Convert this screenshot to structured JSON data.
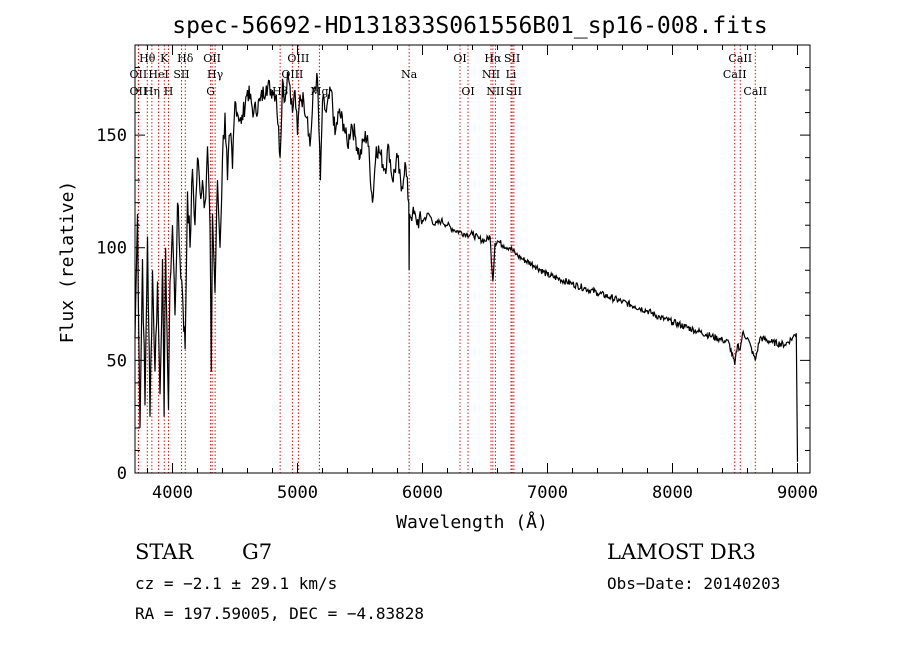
{
  "chart_data": {
    "type": "line",
    "title": "spec-56692-HD131833S061556B01_sp16-008.fits",
    "xlabel": "Wavelength (Å)",
    "ylabel": "Flux (relative)",
    "xlim": [
      3700,
      9100
    ],
    "ylim": [
      0,
      190
    ],
    "x_ticks": [
      4000,
      5000,
      6000,
      7000,
      8000,
      9000
    ],
    "y_ticks": [
      0,
      50,
      100,
      150
    ],
    "line_color": "#000000",
    "marker_color": "#cc0000",
    "series": [
      {
        "name": "flux",
        "x": [
          3700,
          3720,
          3740,
          3760,
          3780,
          3800,
          3820,
          3840,
          3860,
          3880,
          3900,
          3920,
          3933,
          3945,
          3960,
          3968,
          3980,
          4000,
          4020,
          4040,
          4060,
          4080,
          4101,
          4120,
          4140,
          4160,
          4180,
          4200,
          4220,
          4240,
          4260,
          4280,
          4300,
          4310,
          4320,
          4340,
          4360,
          4380,
          4400,
          4420,
          4440,
          4460,
          4480,
          4500,
          4550,
          4600,
          4650,
          4700,
          4750,
          4800,
          4830,
          4861,
          4880,
          4900,
          4920,
          4940,
          4960,
          4980,
          5000,
          5020,
          5050,
          5080,
          5100,
          5130,
          5160,
          5183,
          5200,
          5230,
          5270,
          5300,
          5330,
          5370,
          5400,
          5430,
          5460,
          5500,
          5530,
          5560,
          5600,
          5630,
          5660,
          5700,
          5730,
          5760,
          5800,
          5830,
          5860,
          5890,
          5893,
          5896,
          5920,
          5950,
          6000,
          6050,
          6100,
          6150,
          6200,
          6250,
          6300,
          6350,
          6400,
          6450,
          6500,
          6540,
          6563,
          6580,
          6600,
          6650,
          6700,
          6750,
          6800,
          6900,
          7000,
          7100,
          7200,
          7300,
          7400,
          7500,
          7600,
          7700,
          7800,
          7900,
          8000,
          8100,
          8200,
          8300,
          8400,
          8450,
          8498,
          8520,
          8542,
          8560,
          8600,
          8662,
          8700,
          8800,
          8900,
          8960,
          8990,
          9000
        ],
        "y": [
          60,
          115,
          20,
          95,
          30,
          105,
          25,
          90,
          45,
          85,
          35,
          95,
          25,
          100,
          50,
          28,
          85,
          110,
          70,
          120,
          95,
          80,
          55,
          125,
          100,
          135,
          110,
          140,
          125,
          130,
          120,
          145,
          110,
          45,
          115,
          80,
          130,
          100,
          140,
          160,
          130,
          150,
          135,
          165,
          155,
          170,
          160,
          165,
          172,
          170,
          168,
          140,
          175,
          165,
          178,
          172,
          160,
          170,
          150,
          168,
          165,
          158,
          145,
          170,
          175,
          130,
          165,
          160,
          170,
          150,
          160,
          155,
          145,
          155,
          150,
          140,
          148,
          150,
          120,
          145,
          142,
          135,
          145,
          130,
          140,
          125,
          138,
          120,
          90,
          115,
          115,
          112,
          112,
          115,
          110,
          112,
          110,
          108,
          107,
          106,
          106,
          104,
          103,
          105,
          85,
          102,
          103,
          101,
          100,
          97,
          95,
          92,
          88,
          86,
          84,
          82,
          80,
          78,
          76,
          74,
          72,
          69,
          67,
          65,
          63,
          61,
          59,
          58,
          48,
          57,
          55,
          62,
          60,
          50,
          60,
          58,
          57,
          60,
          62,
          5
        ]
      }
    ],
    "lines": [
      {
        "name": "Hθ",
        "x": 3798,
        "row": 1
      },
      {
        "name": "OII",
        "x": 3727,
        "row": 2
      },
      {
        "name": "OII",
        "x": 3727,
        "row": 3
      },
      {
        "name": "Hη",
        "x": 3835,
        "row": 3
      },
      {
        "name": "HeI",
        "x": 3889,
        "row": 2
      },
      {
        "name": "K",
        "x": 3934,
        "row": 1
      },
      {
        "name": "H",
        "x": 3968,
        "row": 3
      },
      {
        "name": "SII",
        "x": 4072,
        "row": 2
      },
      {
        "name": "Hδ",
        "x": 4102,
        "row": 1
      },
      {
        "name": "OII",
        "x": 4317,
        "row": 1
      },
      {
        "name": "Hγ",
        "x": 4341,
        "row": 2
      },
      {
        "name": "G",
        "x": 4305,
        "row": 3
      },
      {
        "name": "Hβ",
        "x": 4861,
        "row": 3
      },
      {
        "name": "OIII",
        "x": 4959,
        "row": 2
      },
      {
        "name": "OIII",
        "x": 5007,
        "row": 1
      },
      {
        "name": "Mg",
        "x": 5175,
        "row": 3
      },
      {
        "name": "Na",
        "x": 5893,
        "row": 2
      },
      {
        "name": "OI",
        "x": 6300,
        "row": 1
      },
      {
        "name": "OI",
        "x": 6364,
        "row": 3
      },
      {
        "name": "Hα",
        "x": 6563,
        "row": 1
      },
      {
        "name": "NII",
        "x": 6548,
        "row": 2
      },
      {
        "name": "NII",
        "x": 6583,
        "row": 3
      },
      {
        "name": "SII",
        "x": 6717,
        "row": 1
      },
      {
        "name": "Li",
        "x": 6708,
        "row": 2
      },
      {
        "name": "SII",
        "x": 6731,
        "row": 3
      },
      {
        "name": "CaII",
        "x": 8542,
        "row": 1
      },
      {
        "name": "CaII",
        "x": 8498,
        "row": 2
      },
      {
        "name": "CaII",
        "x": 8662,
        "row": 3
      }
    ]
  },
  "info": {
    "object_class": "STAR",
    "subclass": "G7",
    "survey": "LAMOST DR3",
    "redshift": "cz = −2.1 ± 29.1 km/s",
    "obs_date": "Obs−Date: 20140203",
    "coords": "RA = 197.59005, DEC =  −4.83828"
  }
}
